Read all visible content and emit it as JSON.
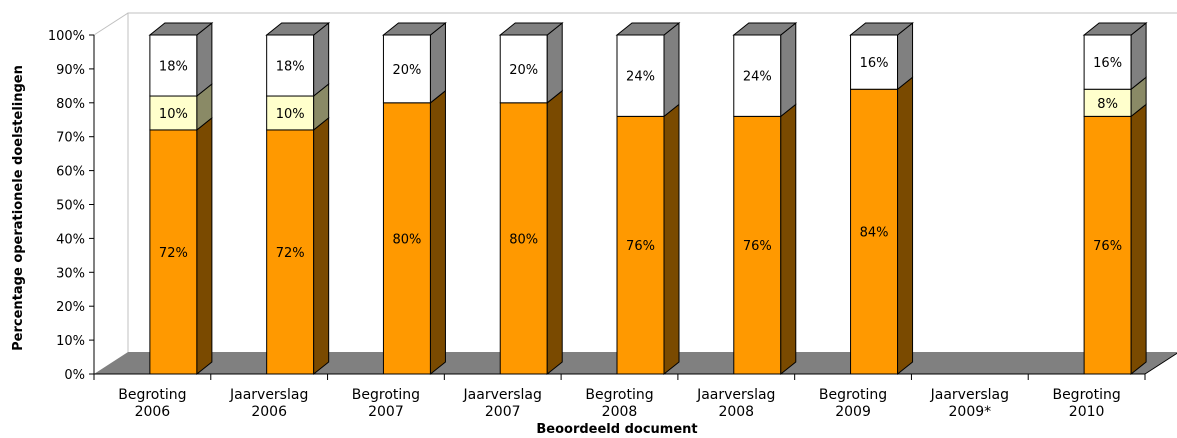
{
  "chart_data": {
    "type": "bar",
    "stacked": true,
    "percent_stacked": true,
    "three_d": true,
    "title": "",
    "xlabel": "Beoordeeld document",
    "ylabel": "Percentage operationele doelstelingen",
    "ylim": [
      0,
      100
    ],
    "y_ticks": [
      "0%",
      "10%",
      "20%",
      "30%",
      "40%",
      "50%",
      "60%",
      "70%",
      "80%",
      "90%",
      "100%"
    ],
    "categories": [
      [
        "Begroting",
        "2006"
      ],
      [
        "Jaarverslag",
        "2006"
      ],
      [
        "Begroting",
        "2007"
      ],
      [
        "Jaarverslag",
        "2007"
      ],
      [
        "Begroting",
        "2008"
      ],
      [
        "Jaarverslag",
        "2008"
      ],
      [
        "Begroting",
        "2009"
      ],
      [
        "Jaarverslag",
        "2009*"
      ],
      [
        "Begroting",
        "2010"
      ]
    ],
    "series": [
      {
        "color": "#ff9900",
        "side_color": "#7a4a00",
        "values": [
          72,
          72,
          80,
          80,
          76,
          76,
          84,
          null,
          76
        ],
        "labels": [
          "72%",
          "72%",
          "80%",
          "80%",
          "76%",
          "76%",
          "84%",
          "",
          "76%"
        ]
      },
      {
        "color": "#ffffcc",
        "side_color": "#8a8a66",
        "values": [
          10,
          10,
          0,
          0,
          0,
          0,
          0,
          null,
          8
        ],
        "labels": [
          "10%",
          "10%",
          "",
          "",
          "",
          "",
          "",
          "",
          "8%"
        ]
      },
      {
        "color": "#ffffff",
        "side_color": "#808080",
        "values": [
          18,
          18,
          20,
          20,
          24,
          24,
          16,
          null,
          16
        ],
        "labels": [
          "18%",
          "18%",
          "20%",
          "20%",
          "24%",
          "24%",
          "16%",
          "",
          "16%"
        ]
      }
    ],
    "floor_color": "#808080",
    "grid": false
  }
}
